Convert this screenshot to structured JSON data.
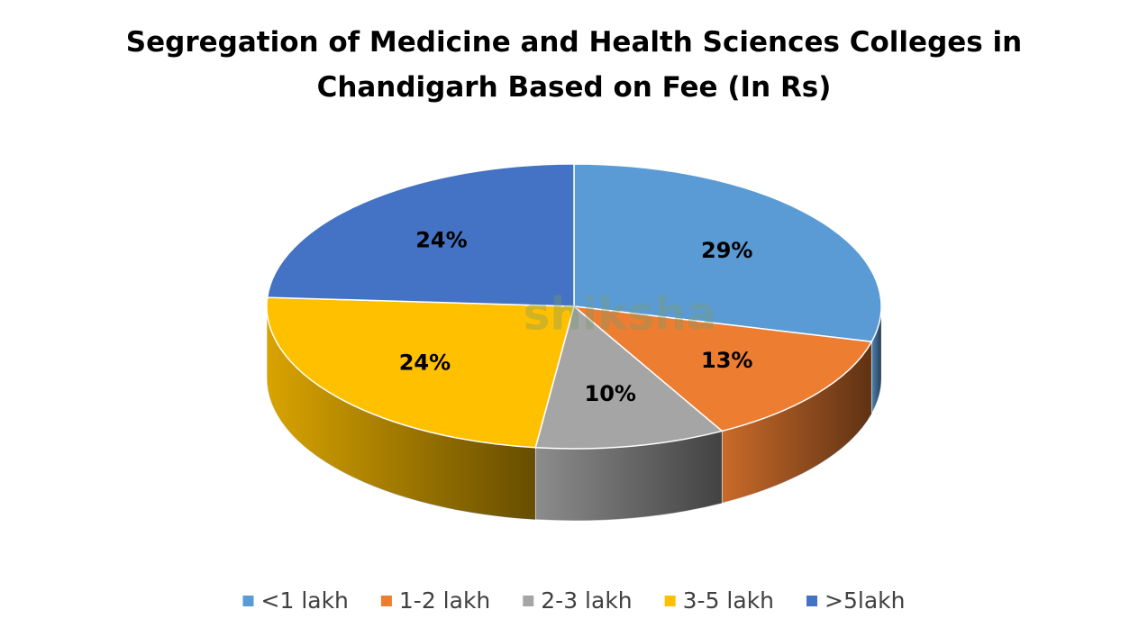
{
  "chart_data": {
    "type": "pie3d",
    "title": "Segregation of Medicine and Health Sciences Colleges in Chandigarh Based on Fee (In Rs)",
    "categories": [
      "<1 lakh",
      "1-2 lakh",
      "2-3 lakh",
      "3-5 lakh",
      ">5lakh"
    ],
    "values": [
      29,
      13,
      10,
      24,
      24
    ],
    "value_labels": [
      "29%",
      "13%",
      "10%",
      "24%",
      "24%"
    ],
    "colors": [
      "#5b9bd5",
      "#ed7d31",
      "#a5a5a5",
      "#ffc000",
      "#4472c4"
    ],
    "legend": "bottom",
    "watermark": "shiksha"
  }
}
